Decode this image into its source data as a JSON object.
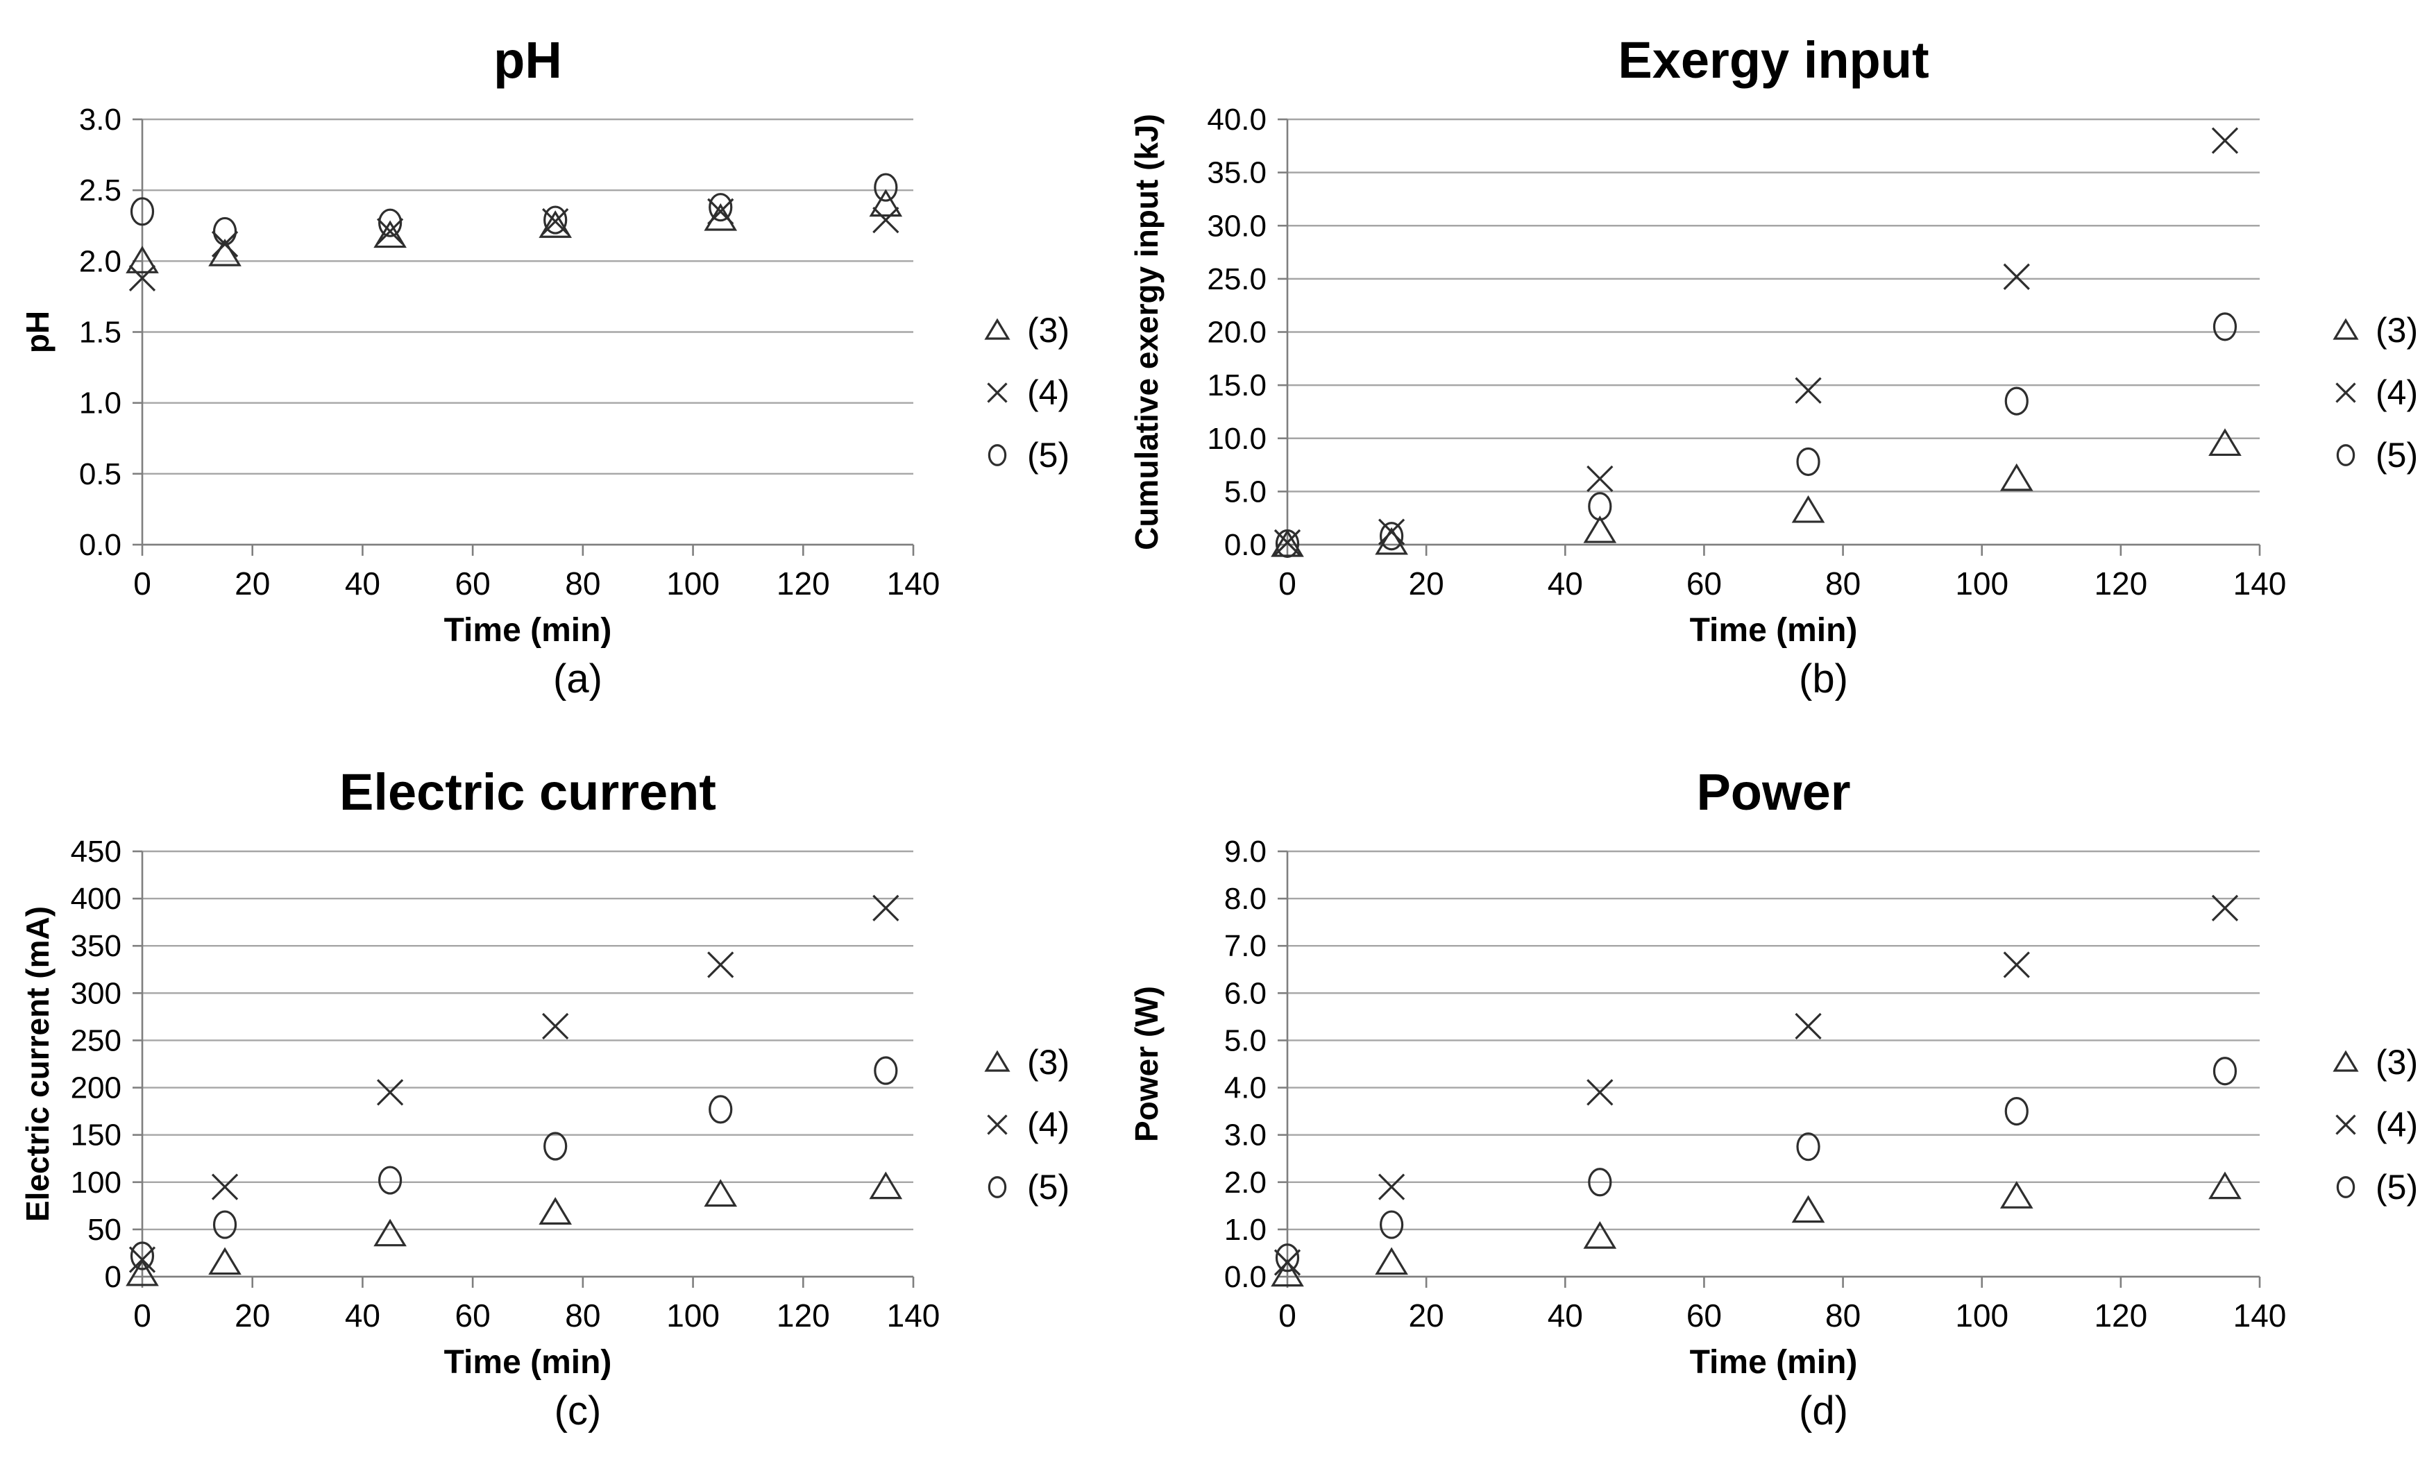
{
  "colors": {
    "text": "#000000",
    "marker": "#2e2e2e",
    "gridline": "#a6a6a6",
    "axis": "#7f7f7f",
    "background": "#ffffff"
  },
  "chart_data": [
    {
      "id": "a",
      "type": "scatter",
      "title": "pH",
      "caption": "(a)",
      "xlabel": "Time (min)",
      "ylabel": "pH",
      "x": [
        0,
        15,
        45,
        75,
        105,
        135
      ],
      "xlim": [
        0,
        140
      ],
      "xticks": [
        0,
        20,
        40,
        60,
        80,
        100,
        120,
        140
      ],
      "ylim": [
        0,
        3.0
      ],
      "yticks": [
        0,
        0.5,
        1.0,
        1.5,
        2.0,
        2.5,
        3.0
      ],
      "ytick_decimals": 1,
      "grid": "horizontal",
      "legend_position": "right",
      "series": [
        {
          "name": "(3)",
          "marker": "triangle",
          "values": [
            2.0,
            2.05,
            2.18,
            2.25,
            2.3,
            2.4
          ]
        },
        {
          "name": "(4)",
          "marker": "x",
          "values": [
            1.88,
            2.12,
            2.21,
            2.28,
            2.35,
            2.29
          ]
        },
        {
          "name": "(5)",
          "marker": "circle",
          "values": [
            2.35,
            2.21,
            2.27,
            2.29,
            2.38,
            2.52
          ]
        }
      ]
    },
    {
      "id": "b",
      "type": "scatter",
      "title": "Exergy input",
      "caption": "(b)",
      "xlabel": "Time (min)",
      "ylabel": "Cumulative exergy input (kJ)",
      "x": [
        0,
        15,
        45,
        75,
        105,
        135
      ],
      "xlim": [
        0,
        140
      ],
      "xticks": [
        0,
        20,
        40,
        60,
        80,
        100,
        120,
        140
      ],
      "ylim": [
        0,
        40.0
      ],
      "yticks": [
        0,
        5.0,
        10.0,
        15.0,
        20.0,
        25.0,
        30.0,
        35.0,
        40.0
      ],
      "ytick_decimals": 1,
      "grid": "horizontal",
      "legend_position": "right",
      "series": [
        {
          "name": "(3)",
          "marker": "triangle",
          "values": [
            0.0,
            0.2,
            1.3,
            3.2,
            6.2,
            9.5
          ]
        },
        {
          "name": "(4)",
          "marker": "x",
          "values": [
            0.2,
            1.2,
            6.2,
            14.5,
            25.2,
            38.0
          ]
        },
        {
          "name": "(5)",
          "marker": "circle",
          "values": [
            0.1,
            0.8,
            3.6,
            7.8,
            13.5,
            20.5
          ]
        }
      ]
    },
    {
      "id": "c",
      "type": "scatter",
      "title": "Electric current",
      "caption": "(c)",
      "xlabel": "Time (min)",
      "ylabel": "Electric current (mA)",
      "x": [
        0,
        15,
        45,
        75,
        105,
        135
      ],
      "xlim": [
        0,
        140
      ],
      "xticks": [
        0,
        20,
        40,
        60,
        80,
        100,
        120,
        140
      ],
      "ylim": [
        0,
        450
      ],
      "yticks": [
        0,
        50,
        100,
        150,
        200,
        250,
        300,
        350,
        400,
        450
      ],
      "ytick_decimals": 0,
      "grid": "horizontal",
      "legend_position": "right",
      "series": [
        {
          "name": "(3)",
          "marker": "triangle",
          "values": [
            3,
            15,
            45,
            68,
            87,
            95
          ]
        },
        {
          "name": "(4)",
          "marker": "x",
          "values": [
            18,
            95,
            195,
            265,
            330,
            390
          ]
        },
        {
          "name": "(5)",
          "marker": "circle",
          "values": [
            22,
            55,
            102,
            138,
            177,
            218
          ]
        }
      ]
    },
    {
      "id": "d",
      "type": "scatter",
      "title": "Power",
      "caption": "(d)",
      "xlabel": "Time (min)",
      "ylabel": "Power (W)",
      "x": [
        0,
        15,
        45,
        75,
        105,
        135
      ],
      "xlim": [
        0,
        140
      ],
      "xticks": [
        0,
        20,
        40,
        60,
        80,
        100,
        120,
        140
      ],
      "ylim": [
        0,
        9.0
      ],
      "yticks": [
        0,
        1.0,
        2.0,
        3.0,
        4.0,
        5.0,
        6.0,
        7.0,
        8.0,
        9.0
      ],
      "ytick_decimals": 1,
      "grid": "horizontal",
      "legend_position": "right",
      "series": [
        {
          "name": "(3)",
          "marker": "triangle",
          "values": [
            0.05,
            0.3,
            0.85,
            1.4,
            1.7,
            1.9
          ]
        },
        {
          "name": "(4)",
          "marker": "x",
          "values": [
            0.3,
            1.9,
            3.9,
            5.3,
            6.6,
            7.8
          ]
        },
        {
          "name": "(5)",
          "marker": "circle",
          "values": [
            0.4,
            1.1,
            2.0,
            2.75,
            3.5,
            4.35
          ]
        }
      ]
    }
  ]
}
